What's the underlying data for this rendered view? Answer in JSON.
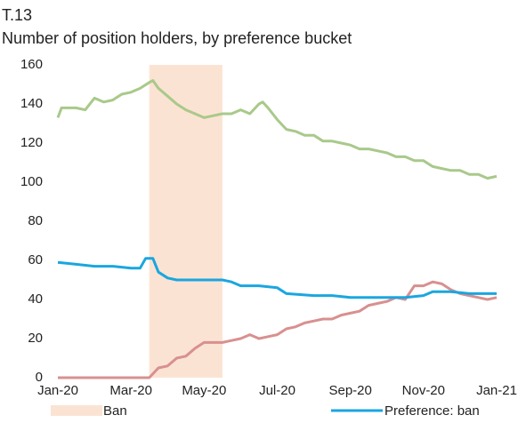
{
  "chart_data": {
    "type": "line",
    "title": "T.13",
    "subtitle": "Number of position holders, by preference bucket",
    "xlim": [
      0,
      12
    ],
    "xticks": [
      {
        "value": 0,
        "label": "Jan-20"
      },
      {
        "value": 2,
        "label": "Mar-20"
      },
      {
        "value": 4,
        "label": "May-20"
      },
      {
        "value": 6,
        "label": "Jul-20"
      },
      {
        "value": 8,
        "label": "Sep-20"
      },
      {
        "value": 10,
        "label": "Nov-20"
      },
      {
        "value": 12,
        "label": "Jan-21"
      }
    ],
    "ylim": [
      0,
      160
    ],
    "yticks": [
      0,
      20,
      40,
      60,
      80,
      100,
      120,
      140,
      160
    ],
    "grid": false,
    "ban": {
      "name": "Ban",
      "range": [
        2.5,
        4.5
      ],
      "color": "#fbe3d3"
    },
    "series": [
      {
        "color": "#a9c98a",
        "x": [
          0,
          0.1,
          0.5,
          0.75,
          1,
          1.25,
          1.5,
          1.75,
          2,
          2.25,
          2.5,
          2.6,
          2.75,
          3,
          3.25,
          3.5,
          3.75,
          4,
          4.25,
          4.5,
          4.75,
          5,
          5.25,
          5.5,
          5.6,
          5.75,
          6,
          6.25,
          6.5,
          6.75,
          7,
          7.25,
          7.5,
          7.75,
          8,
          8.25,
          8.5,
          8.75,
          9,
          9.25,
          9.5,
          9.75,
          10,
          10.25,
          10.5,
          10.75,
          11,
          11.25,
          11.5,
          11.75,
          12
        ],
        "values": [
          133,
          138,
          138,
          137,
          143,
          141,
          142,
          145,
          146,
          148,
          151,
          152,
          148,
          144,
          140,
          137,
          135,
          133,
          134,
          135,
          135,
          137,
          135,
          140,
          141,
          138,
          132,
          127,
          126,
          124,
          124,
          121,
          121,
          120,
          119,
          117,
          117,
          116,
          115,
          113,
          113,
          111,
          111,
          108,
          107,
          106,
          106,
          104,
          104,
          102,
          103
        ]
      },
      {
        "color": "#d8908f",
        "x": [
          0,
          2.5,
          2.75,
          3,
          3.25,
          3.5,
          3.75,
          4,
          4.5,
          4.75,
          5,
          5.25,
          5.5,
          5.75,
          6,
          6.25,
          6.5,
          6.75,
          7,
          7.25,
          7.5,
          7.75,
          8,
          8.25,
          8.5,
          8.75,
          9,
          9.25,
          9.5,
          9.75,
          10,
          10.25,
          10.5,
          10.75,
          11,
          11.25,
          11.5,
          11.75,
          12
        ],
        "values": [
          0,
          0,
          5,
          6,
          10,
          11,
          15,
          18,
          18,
          19,
          20,
          22,
          20,
          21,
          22,
          25,
          26,
          28,
          29,
          30,
          30,
          32,
          33,
          34,
          37,
          38,
          39,
          41,
          40,
          47,
          47,
          49,
          48,
          45,
          43,
          42,
          41,
          40,
          41
        ]
      },
      {
        "name": "Preference: ban",
        "color": "#1aa6e0",
        "x": [
          0,
          0.5,
          1,
          1.5,
          2,
          2.25,
          2.4,
          2.6,
          2.75,
          3,
          3.25,
          3.75,
          4,
          4.5,
          4.75,
          5,
          5.5,
          6,
          6.25,
          7,
          7.5,
          8,
          9,
          9.5,
          10,
          10.25,
          10.75,
          11.25,
          12
        ],
        "values": [
          59,
          58,
          57,
          57,
          56,
          56,
          61,
          61,
          54,
          51,
          50,
          50,
          50,
          50,
          49,
          47,
          47,
          46,
          43,
          42,
          42,
          41,
          41,
          41,
          42,
          44,
          44,
          43,
          43
        ]
      }
    ]
  }
}
